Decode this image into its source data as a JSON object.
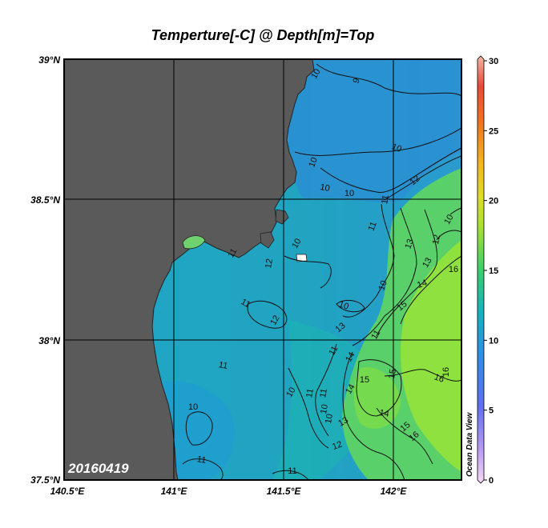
{
  "title": "Temperture[-C] @ Depth[m]=Top",
  "date_stamp": "20160419",
  "watermark": "Ocean Data View",
  "map": {
    "lon_labels": [
      "140.5°E",
      "141°E",
      "141.5°E",
      "142°E"
    ],
    "lat_labels": [
      "39°N",
      "38.5°N",
      "38°N",
      "37.5°N"
    ],
    "land_color": "#5a5a5a"
  },
  "colorbar": {
    "ticks": [
      "30",
      "25",
      "20",
      "15",
      "10",
      "5",
      "0"
    ]
  },
  "contour_labels": [
    "10",
    "10",
    "10",
    "10",
    "9",
    "10",
    "10",
    "11",
    "12",
    "11",
    "12",
    "13",
    "13",
    "14",
    "16",
    "10",
    "11",
    "12",
    "11",
    "12",
    "10",
    "10",
    "10",
    "11",
    "13",
    "15",
    "11",
    "11",
    "11",
    "14",
    "15",
    "16",
    "10",
    "11",
    "11",
    "14",
    "13",
    "15",
    "16",
    "10",
    "10",
    "12",
    "14",
    "11",
    "15",
    "16"
  ]
}
